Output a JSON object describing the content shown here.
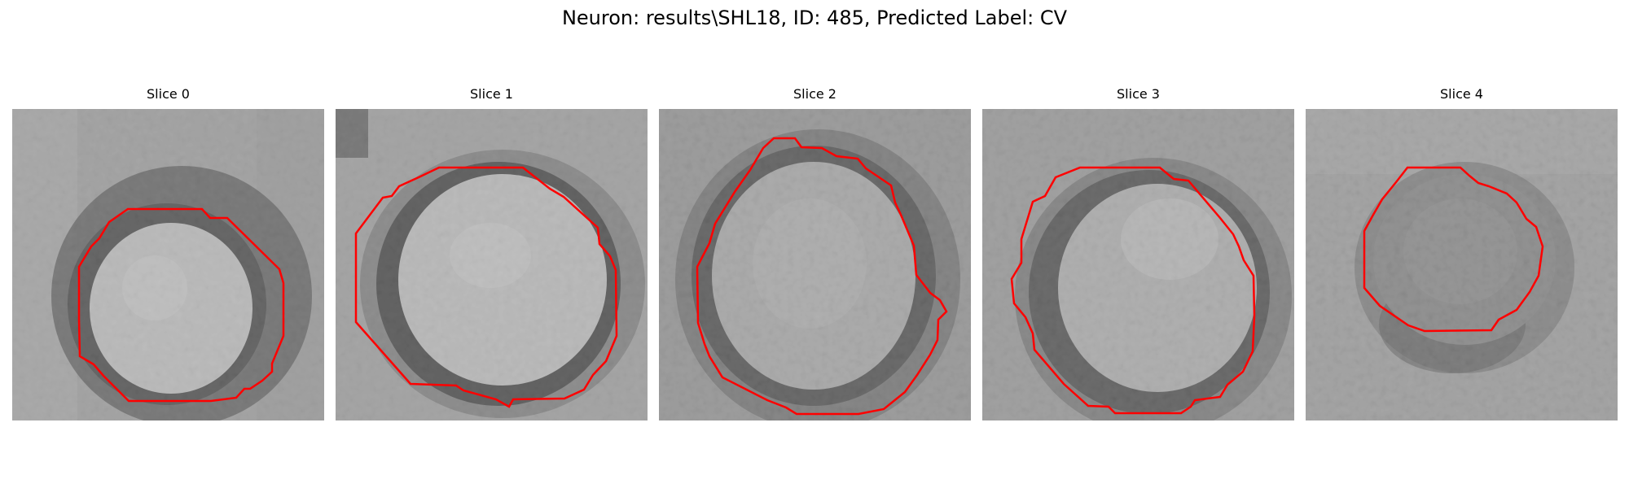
{
  "figure": {
    "suptitle": "Neuron: results\\SHL18, ID: 485, Predicted Label: CV",
    "contour_color": "#ff0000",
    "panels": [
      {
        "title": "Slice 0"
      },
      {
        "title": "Slice 1"
      },
      {
        "title": "Slice 2"
      },
      {
        "title": "Slice 3"
      },
      {
        "title": "Slice 4"
      }
    ]
  }
}
